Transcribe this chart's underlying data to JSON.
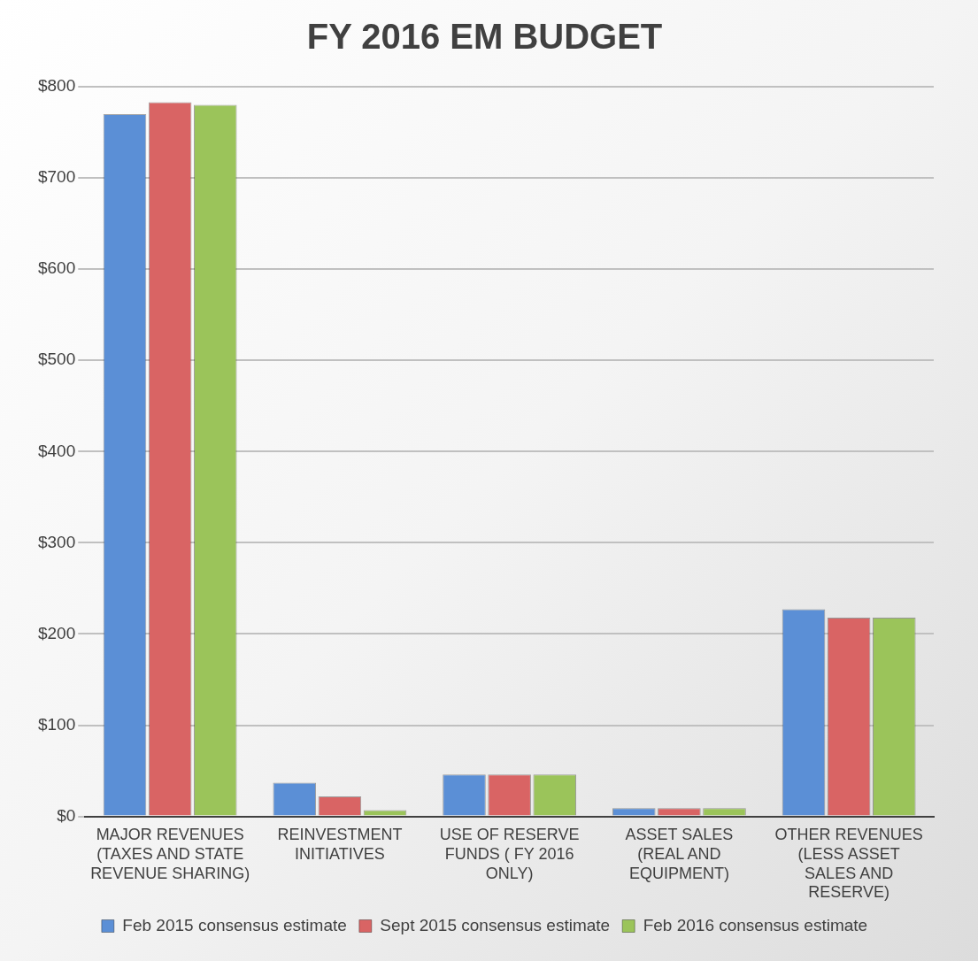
{
  "chart_data": {
    "type": "bar",
    "title": "FY 2016 EM BUDGET",
    "categories": [
      "MAJOR REVENUES (TAXES AND STATE REVENUE SHARING)",
      "REINVESTMENT INITIATIVES",
      "USE OF RESERVE FUNDS ( FY 2016 ONLY)",
      "ASSET SALES (REAL AND EQUIPMENT)",
      "OTHER REVENUES (LESS ASSET SALES AND RESERVE)"
    ],
    "series": [
      {
        "name": "Feb 2015 consensus estimate",
        "color": "#5b8fd6",
        "values": [
          770,
          37,
          46,
          9,
          227
        ]
      },
      {
        "name": "Sept 2015 consensus estimate",
        "color": "#d96464",
        "values": [
          783,
          22,
          46,
          9,
          218
        ]
      },
      {
        "name": "Feb 2016 consensus estimate",
        "color": "#9bc45a",
        "values": [
          780,
          7,
          46,
          9,
          218
        ]
      }
    ],
    "ylim": [
      0,
      800
    ],
    "yticks": [
      {
        "value": 0,
        "label": "$0"
      },
      {
        "value": 100,
        "label": "$100"
      },
      {
        "value": 200,
        "label": "$200"
      },
      {
        "value": 300,
        "label": "$300"
      },
      {
        "value": 400,
        "label": "$400"
      },
      {
        "value": 500,
        "label": "$500"
      },
      {
        "value": 600,
        "label": "$600"
      },
      {
        "value": 700,
        "label": "$700"
      },
      {
        "value": 800,
        "label": "$800"
      }
    ],
    "grid": "y",
    "legend": "bottom"
  }
}
